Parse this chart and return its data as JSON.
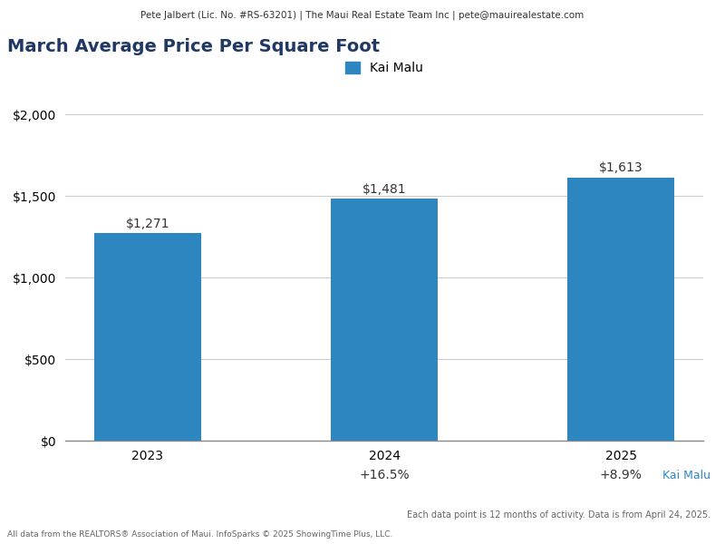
{
  "title": "March Average Price Per Square Foot",
  "header": "Pete Jalbert (Lic. No. #RS-63201) | The Maui Real Estate Team Inc | pete@mauirealestate.com",
  "legend_label": "Kai Malu",
  "categories": [
    "2023",
    "2024",
    "2025"
  ],
  "values": [
    1271,
    1481,
    1613
  ],
  "bar_color": "#2E86C1",
  "value_labels": [
    "$1,271",
    "$1,481",
    "$1,613"
  ],
  "pct_changes": [
    "",
    "+16.5%",
    "+8.9%"
  ],
  "ylim": [
    0,
    2000
  ],
  "yticks": [
    0,
    500,
    1000,
    1500,
    2000
  ],
  "ytick_labels": [
    "$0",
    "$500",
    "$1,000",
    "$1,500",
    "$2,000"
  ],
  "title_color": "#1F3864",
  "title_fontsize": 14,
  "bar_width": 0.45,
  "footer_left": "All data from the REALTORS® Association of Maui. InfoSparks © 2025 ShowingTime Plus, LLC.",
  "footer_right": "Each data point is 12 months of activity. Data is from April 24, 2025.",
  "watermark": "Kai Malu",
  "header_bg": "#E8E8E8",
  "bar_label_color": "#333333",
  "pct_color": "#333333",
  "legend_color": "#2E86C1",
  "grid_color": "#CCCCCC",
  "spine_color": "#888888",
  "watermark_color": "#2E86C1",
  "footer_color": "#666666",
  "header_text_color": "#333333"
}
